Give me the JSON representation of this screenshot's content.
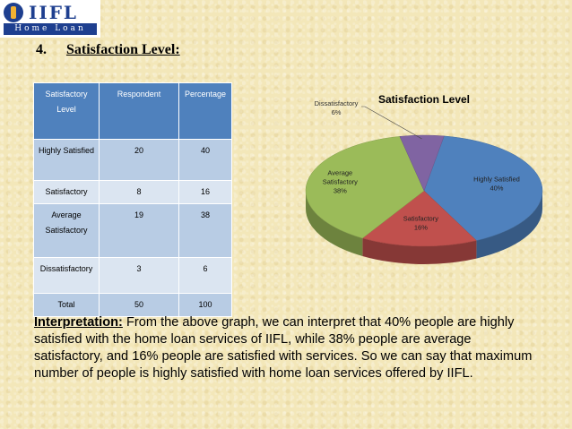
{
  "logo": {
    "brand": "IIFL",
    "sub": "Home Loan"
  },
  "heading": {
    "number": "4.",
    "title": "Satisfaction Level:"
  },
  "table": {
    "headers": [
      "Satisfactory Level",
      "Respondent",
      "Percentage"
    ],
    "rows": [
      [
        "Highly Satisfied",
        "20",
        "40"
      ],
      [
        "Satisfactory",
        "8",
        "16"
      ],
      [
        "Average Satisfactory",
        "19",
        "38"
      ],
      [
        "Dissatisfactory",
        "3",
        "6"
      ],
      [
        "Total",
        "50",
        "100"
      ]
    ]
  },
  "chart_data": {
    "type": "pie",
    "title": "Satisfaction Level",
    "slices": [
      {
        "label": "Highly Satisfied",
        "value": 40,
        "display": "40%",
        "color": "#4f81bd"
      },
      {
        "label": "Satisfactory",
        "value": 16,
        "display": "16%",
        "color": "#c0504d"
      },
      {
        "label": "Average Satisfactory",
        "value": 38,
        "display": "38%",
        "color": "#9bbb59"
      },
      {
        "label": "Dissatisfactory",
        "value": 6,
        "display": "6%",
        "color": "#8064a2"
      }
    ],
    "legend": "none",
    "three_d": true
  },
  "interpretation": {
    "label": "Interpretation:",
    "text": " From the above graph, we can interpret that 40% people are highly satisfied with the home loan services of IIFL, while 38% people are average satisfactory, and 16% people are satisfied with services. So we can say that maximum number of people is highly satisfied with home loan services offered by IIFL."
  }
}
